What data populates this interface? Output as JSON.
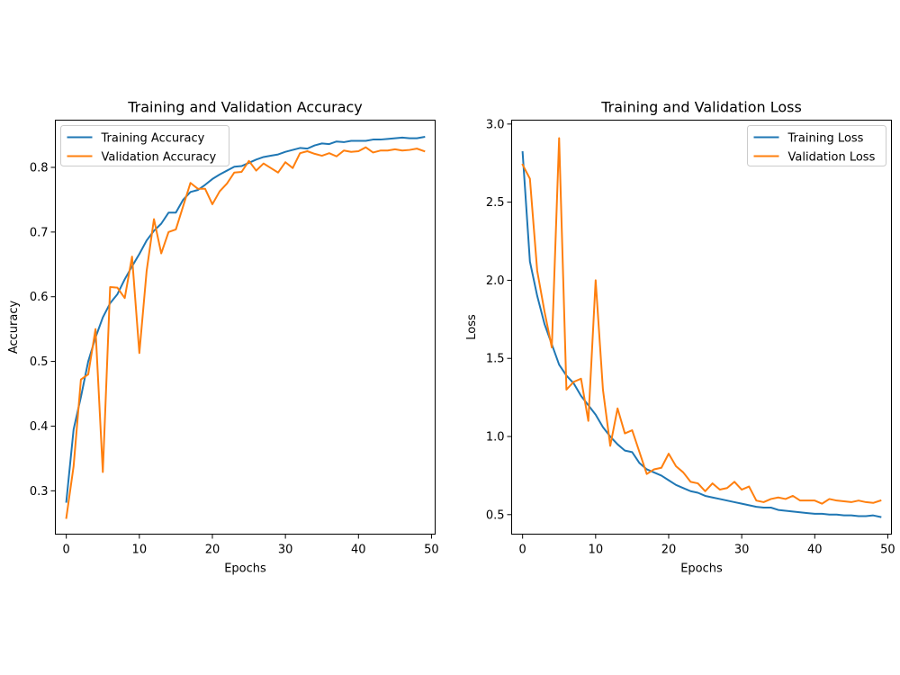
{
  "colors": {
    "training": "#1f77b4",
    "validation": "#ff7f0e",
    "axis": "#000000"
  },
  "chart_data": [
    {
      "type": "line",
      "title": "Training and Validation Accuracy",
      "xlabel": "Epochs",
      "ylabel": "Accuracy",
      "xlim": [
        -1.5,
        50.5
      ],
      "ylim": [
        0.233,
        0.873
      ],
      "xticks": [
        0,
        10,
        20,
        30,
        40,
        50
      ],
      "xtick_labels": [
        "0",
        "10",
        "20",
        "30",
        "40",
        "50"
      ],
      "yticks": [
        0.3,
        0.4,
        0.5,
        0.6,
        0.7,
        0.8
      ],
      "ytick_labels": [
        "0.3",
        "0.4",
        "0.5",
        "0.6",
        "0.7",
        "0.8"
      ],
      "grid": false,
      "legend_position": "upper-left",
      "x": [
        0,
        1,
        2,
        3,
        4,
        5,
        6,
        7,
        8,
        9,
        10,
        11,
        12,
        13,
        14,
        15,
        16,
        17,
        18,
        19,
        20,
        21,
        22,
        23,
        24,
        25,
        26,
        27,
        28,
        29,
        30,
        31,
        32,
        33,
        34,
        35,
        36,
        37,
        38,
        39,
        40,
        41,
        42,
        43,
        44,
        45,
        46,
        47,
        48,
        49
      ],
      "series": [
        {
          "name": "Training Accuracy",
          "color_key": "training",
          "values": [
            0.283,
            0.395,
            0.445,
            0.5,
            0.537,
            0.568,
            0.59,
            0.604,
            0.627,
            0.647,
            0.666,
            0.687,
            0.702,
            0.713,
            0.73,
            0.73,
            0.75,
            0.762,
            0.765,
            0.773,
            0.782,
            0.789,
            0.795,
            0.801,
            0.802,
            0.807,
            0.812,
            0.816,
            0.818,
            0.82,
            0.824,
            0.827,
            0.83,
            0.829,
            0.834,
            0.837,
            0.836,
            0.84,
            0.839,
            0.841,
            0.841,
            0.841,
            0.843,
            0.843,
            0.844,
            0.845,
            0.846,
            0.845,
            0.845,
            0.847
          ]
        },
        {
          "name": "Validation Accuracy",
          "color_key": "validation",
          "values": [
            0.258,
            0.338,
            0.472,
            0.48,
            0.55,
            0.329,
            0.615,
            0.614,
            0.598,
            0.662,
            0.513,
            0.64,
            0.72,
            0.667,
            0.7,
            0.704,
            0.74,
            0.776,
            0.767,
            0.767,
            0.743,
            0.763,
            0.775,
            0.792,
            0.793,
            0.81,
            0.795,
            0.806,
            0.799,
            0.792,
            0.808,
            0.799,
            0.822,
            0.825,
            0.821,
            0.818,
            0.822,
            0.817,
            0.826,
            0.824,
            0.825,
            0.831,
            0.823,
            0.826,
            0.826,
            0.828,
            0.826,
            0.827,
            0.829,
            0.825
          ]
        }
      ]
    },
    {
      "type": "line",
      "title": "Training and Validation Loss",
      "xlabel": "Epochs",
      "ylabel": "Loss",
      "xlim": [
        -1.5,
        50.5
      ],
      "ylim": [
        0.375,
        3.025
      ],
      "xticks": [
        0,
        10,
        20,
        30,
        40,
        50
      ],
      "xtick_labels": [
        "0",
        "10",
        "20",
        "30",
        "40",
        "50"
      ],
      "yticks": [
        0.5,
        1.0,
        1.5,
        2.0,
        2.5,
        3.0
      ],
      "ytick_labels": [
        "0.5",
        "1.0",
        "1.5",
        "2.0",
        "2.5",
        "3.0"
      ],
      "grid": false,
      "legend_position": "upper-right",
      "x": [
        0,
        1,
        2,
        3,
        4,
        5,
        6,
        7,
        8,
        9,
        10,
        11,
        12,
        13,
        14,
        15,
        16,
        17,
        18,
        19,
        20,
        21,
        22,
        23,
        24,
        25,
        26,
        27,
        28,
        29,
        30,
        31,
        32,
        33,
        34,
        35,
        36,
        37,
        38,
        39,
        40,
        41,
        42,
        43,
        44,
        45,
        46,
        47,
        48,
        49
      ],
      "series": [
        {
          "name": "Training Loss",
          "color_key": "training",
          "values": [
            2.82,
            2.12,
            1.9,
            1.72,
            1.59,
            1.46,
            1.39,
            1.34,
            1.26,
            1.2,
            1.14,
            1.06,
            1.0,
            0.95,
            0.91,
            0.9,
            0.83,
            0.79,
            0.77,
            0.75,
            0.72,
            0.69,
            0.67,
            0.65,
            0.64,
            0.62,
            0.61,
            0.6,
            0.59,
            0.58,
            0.57,
            0.56,
            0.55,
            0.545,
            0.545,
            0.53,
            0.525,
            0.52,
            0.515,
            0.51,
            0.505,
            0.505,
            0.5,
            0.5,
            0.495,
            0.495,
            0.49,
            0.49,
            0.495,
            0.485
          ]
        },
        {
          "name": "Validation Loss",
          "color_key": "validation",
          "values": [
            2.74,
            2.65,
            2.06,
            1.8,
            1.57,
            2.91,
            1.3,
            1.35,
            1.37,
            1.1,
            2.0,
            1.3,
            0.94,
            1.18,
            1.02,
            1.04,
            0.9,
            0.76,
            0.79,
            0.8,
            0.89,
            0.81,
            0.77,
            0.71,
            0.7,
            0.65,
            0.7,
            0.66,
            0.67,
            0.71,
            0.66,
            0.68,
            0.59,
            0.58,
            0.6,
            0.61,
            0.6,
            0.62,
            0.59,
            0.59,
            0.59,
            0.57,
            0.6,
            0.59,
            0.585,
            0.58,
            0.59,
            0.58,
            0.575,
            0.59
          ]
        }
      ]
    }
  ]
}
